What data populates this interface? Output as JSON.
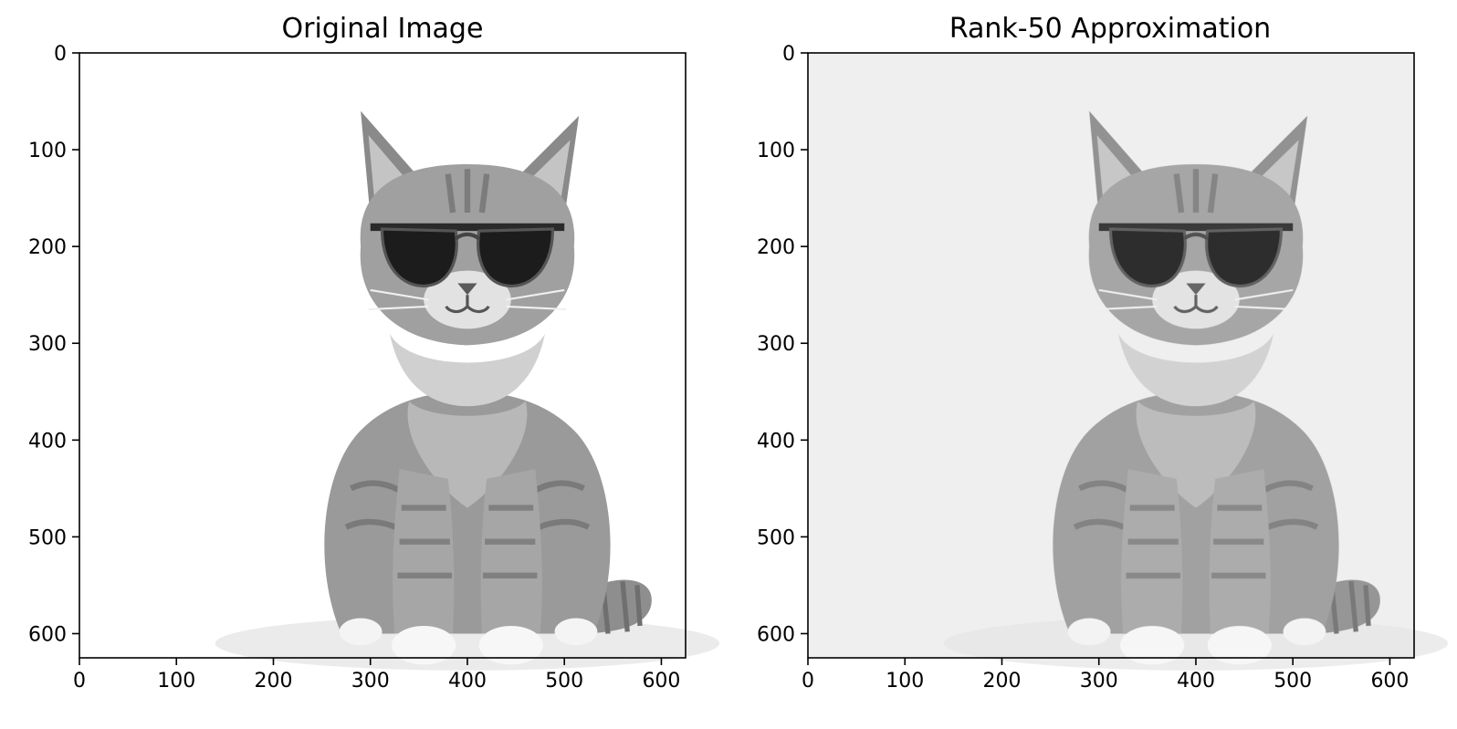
{
  "chart_data": [
    {
      "type": "image",
      "title": "Original Image",
      "xlim": [
        0,
        625
      ],
      "ylim": [
        625,
        0
      ],
      "xticks": [
        0,
        100,
        200,
        300,
        400,
        500,
        600
      ],
      "yticks": [
        0,
        100,
        200,
        300,
        400,
        500,
        600
      ],
      "xtick_labels": [
        "0",
        "100",
        "200",
        "300",
        "400",
        "500",
        "600"
      ],
      "ytick_labels": [
        "0",
        "100",
        "200",
        "300",
        "400",
        "500",
        "600"
      ],
      "background_color": "#ffffff",
      "image_content": "grayscale-cat-with-sunglasses"
    },
    {
      "type": "image",
      "title": "Rank-50 Approximation",
      "xlim": [
        0,
        625
      ],
      "ylim": [
        625,
        0
      ],
      "xticks": [
        0,
        100,
        200,
        300,
        400,
        500,
        600
      ],
      "yticks": [
        0,
        100,
        200,
        300,
        400,
        500,
        600
      ],
      "xtick_labels": [
        "0",
        "100",
        "200",
        "300",
        "400",
        "500",
        "600"
      ],
      "ytick_labels": [
        "0",
        "100",
        "200",
        "300",
        "400",
        "500",
        "600"
      ],
      "background_color": "#efefef",
      "image_content": "grayscale-cat-with-sunglasses"
    }
  ]
}
